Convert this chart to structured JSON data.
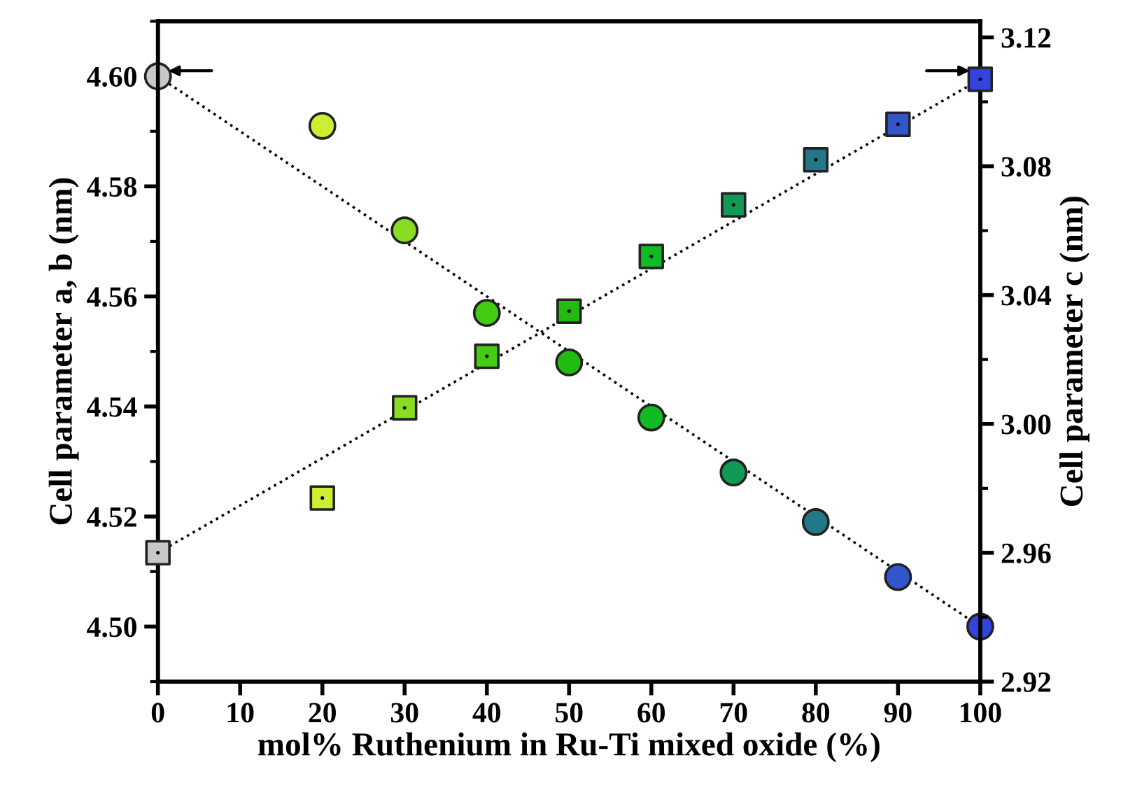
{
  "chart_data": {
    "type": "scatter",
    "xlabel": "mol% Ruthenium in Ru-Ti mixed oxide (%)",
    "ylabel": "Cell parameter a, b (nm)",
    "y2label": "Cell parameter c (nm)",
    "xlim": [
      0,
      100
    ],
    "xticks": [
      0,
      10,
      20,
      30,
      40,
      50,
      60,
      70,
      80,
      90,
      100
    ],
    "ylim": [
      4.49,
      4.61
    ],
    "yticks": [
      {
        "value": 4.5,
        "label": "4.50"
      },
      4.52,
      4.54,
      4.56,
      4.58,
      {
        "value": 4.6,
        "label": "4.60"
      }
    ],
    "y2lim": [
      2.92,
      3.125
    ],
    "y2ticks": [
      2.92,
      2.96,
      {
        "value": 3.0,
        "label": "3.00"
      },
      3.04,
      3.08,
      3.12
    ],
    "grid": false,
    "series": [
      {
        "type": "line",
        "x": [
          0,
          100
        ],
        "values": [
          4.6,
          4.5
        ],
        "color": "#000000",
        "line_style": "dotted",
        "marker": "none"
      },
      {
        "type": "line",
        "axis": "y2",
        "x": [
          0,
          100
        ],
        "values": [
          2.96,
          3.107
        ],
        "color": "#000000",
        "line_style": "dotted",
        "marker": "none"
      },
      {
        "marker": "circle",
        "x": [
          0,
          20,
          30,
          40,
          50,
          60,
          70,
          80,
          90,
          100
        ],
        "values": [
          4.6,
          4.591,
          4.572,
          4.557,
          4.548,
          4.538,
          4.528,
          4.519,
          4.509,
          4.5
        ],
        "colors": [
          "#c8c8c8",
          "#ccee33",
          "#88dd22",
          "#44cc11",
          "#22bb11",
          "#11bb22",
          "#119955",
          "#227788",
          "#3355cc",
          "#3344dd"
        ]
      },
      {
        "marker": "square",
        "axis": "y2",
        "x": [
          0,
          20,
          30,
          40,
          50,
          60,
          70,
          80,
          90,
          100
        ],
        "values": [
          2.96,
          2.977,
          3.005,
          3.021,
          3.035,
          3.052,
          3.068,
          3.082,
          3.093,
          3.107
        ],
        "colors": [
          "#c8c8c8",
          "#ccee33",
          "#88dd22",
          "#44cc11",
          "#22bb11",
          "#11bb22",
          "#119955",
          "#227788",
          "#3355cc",
          "#3344dd"
        ]
      }
    ]
  }
}
